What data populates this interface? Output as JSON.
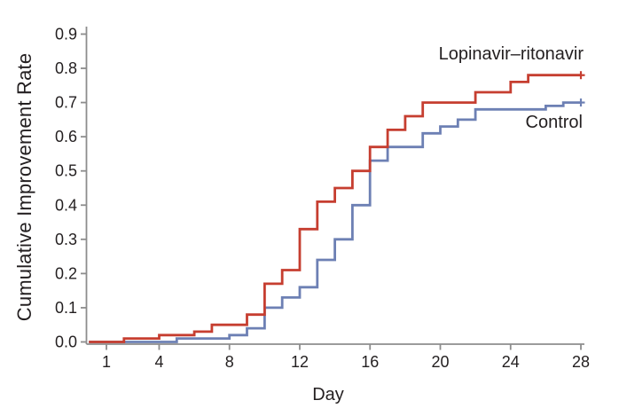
{
  "chart_data": {
    "type": "line",
    "subtype": "step-after",
    "title": "",
    "xlabel": "Day",
    "ylabel": "Cumulative Improvement Rate",
    "xlim": [
      0,
      28.3
    ],
    "ylim": [
      0.0,
      0.93
    ],
    "grid": false,
    "legend_position": "inline-curve-labels",
    "x_ticks": [
      1,
      4,
      8,
      12,
      16,
      20,
      24,
      28
    ],
    "y_ticks": [
      "0.0",
      "0.1",
      "0.2",
      "0.3",
      "0.4",
      "0.5",
      "0.6",
      "0.7",
      "0.8",
      "0.9"
    ],
    "series": [
      {
        "name": "Control",
        "color": "#6d80b4",
        "censored_at_end": true,
        "points": [
          [
            0,
            0.0
          ],
          [
            5,
            0.01
          ],
          [
            8,
            0.02
          ],
          [
            9,
            0.04
          ],
          [
            10,
            0.1
          ],
          [
            11,
            0.13
          ],
          [
            12,
            0.16
          ],
          [
            13,
            0.24
          ],
          [
            14,
            0.3
          ],
          [
            15,
            0.4
          ],
          [
            16,
            0.53
          ],
          [
            17,
            0.57
          ],
          [
            19,
            0.61
          ],
          [
            20,
            0.63
          ],
          [
            21,
            0.65
          ],
          [
            22,
            0.68
          ],
          [
            26,
            0.69
          ],
          [
            27,
            0.7
          ],
          [
            28,
            0.7
          ]
        ]
      },
      {
        "name": "Lopinavir–ritonavir",
        "color": "#c63e30",
        "censored_at_end": true,
        "points": [
          [
            0,
            0.0
          ],
          [
            2,
            0.01
          ],
          [
            4,
            0.02
          ],
          [
            6,
            0.03
          ],
          [
            7,
            0.05
          ],
          [
            9,
            0.08
          ],
          [
            10,
            0.17
          ],
          [
            11,
            0.21
          ],
          [
            12,
            0.33
          ],
          [
            13,
            0.41
          ],
          [
            14,
            0.45
          ],
          [
            15,
            0.5
          ],
          [
            16,
            0.57
          ],
          [
            17,
            0.62
          ],
          [
            18,
            0.66
          ],
          [
            19,
            0.7
          ],
          [
            22,
            0.73
          ],
          [
            24,
            0.76
          ],
          [
            25,
            0.78
          ],
          [
            28,
            0.78
          ]
        ]
      }
    ]
  },
  "colors": {
    "background": "#ffffff",
    "axis": "#8d8d8d",
    "text": "#231f20",
    "lopinavir_line": "#c63e30",
    "control_line": "#6d80b4"
  }
}
